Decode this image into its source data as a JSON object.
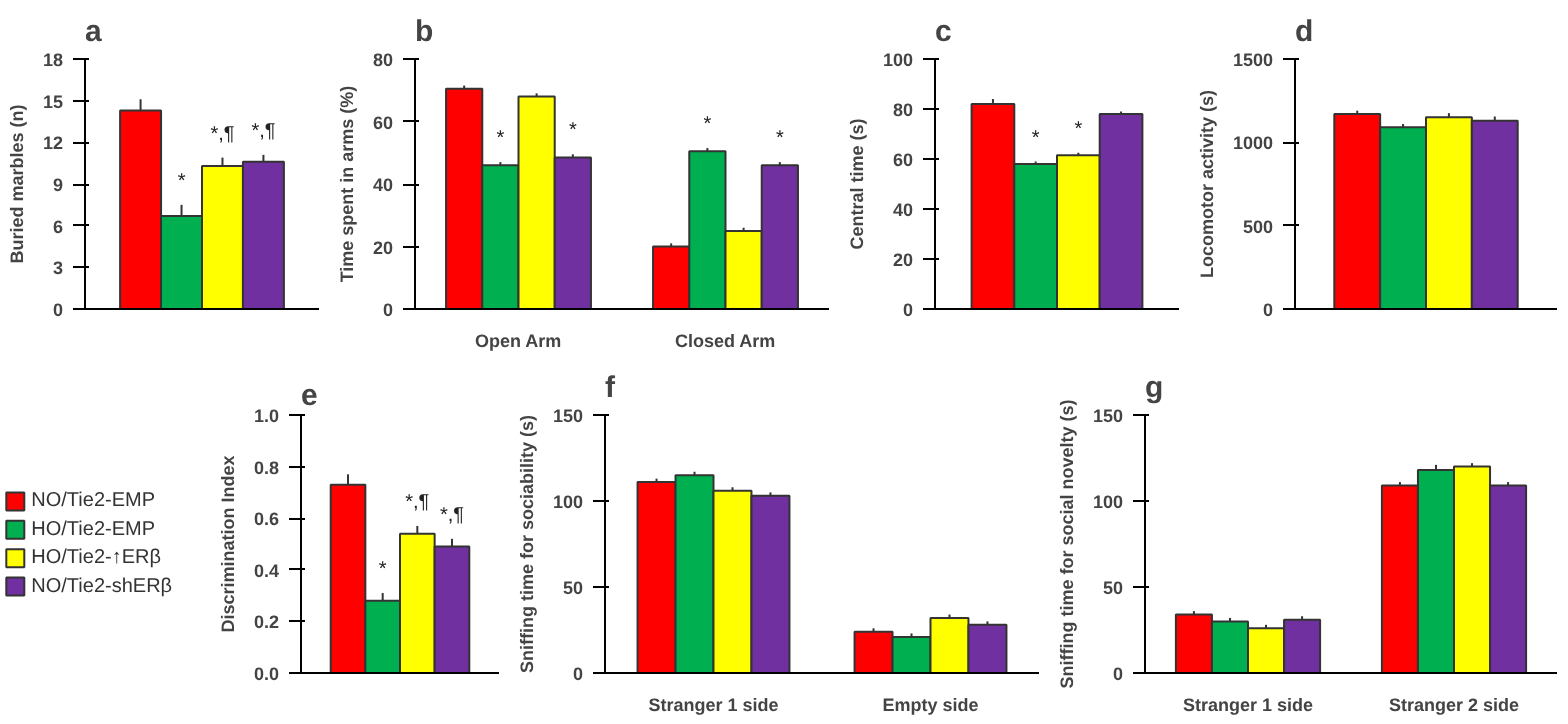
{
  "chart_data": [
    {
      "type": "bar",
      "title": "a",
      "ylabel": "Buried marbles (n)",
      "categories": [
        null
      ],
      "ylim": [
        0,
        18
      ],
      "yticks": [
        0,
        3,
        6,
        9,
        12,
        15,
        18
      ],
      "series": [
        {
          "color": "#ff0000",
          "values": [
            14.3
          ],
          "errors": [
            0.8
          ],
          "value_labels": [
            null
          ]
        },
        {
          "color": "#00b050",
          "values": [
            6.7
          ],
          "errors": [
            0.8
          ],
          "value_labels": [
            "*"
          ]
        },
        {
          "color": "#ffff00",
          "values": [
            10.3
          ],
          "errors": [
            0.6
          ],
          "value_labels": [
            "*,¶"
          ]
        },
        {
          "color": "#7030a0",
          "values": [
            10.6
          ],
          "errors": [
            0.5
          ],
          "value_labels": [
            "*,¶"
          ]
        }
      ]
    },
    {
      "type": "bar",
      "title": "b",
      "ylabel": "Time spent in arms (%)",
      "categories": [
        "Open Arm",
        "Closed Arm"
      ],
      "ylim": [
        0,
        80
      ],
      "yticks": [
        0,
        20,
        40,
        60,
        80
      ],
      "series": [
        {
          "color": "#ff0000",
          "values": [
            70.5,
            20
          ],
          "errors": [
            1,
            1
          ],
          "value_labels": [
            null,
            null
          ]
        },
        {
          "color": "#00b050",
          "values": [
            46,
            50.5
          ],
          "errors": [
            1,
            1
          ],
          "value_labels": [
            "*",
            "*"
          ]
        },
        {
          "color": "#ffff00",
          "values": [
            68,
            25
          ],
          "errors": [
            1,
            1
          ],
          "value_labels": [
            null,
            null
          ]
        },
        {
          "color": "#7030a0",
          "values": [
            48.5,
            46
          ],
          "errors": [
            1,
            1
          ],
          "value_labels": [
            "*",
            "*"
          ]
        }
      ]
    },
    {
      "type": "bar",
      "title": "c",
      "ylabel": "Central time (s)",
      "categories": [
        null
      ],
      "ylim": [
        0,
        100
      ],
      "yticks": [
        0,
        20,
        40,
        60,
        80,
        100
      ],
      "series": [
        {
          "color": "#ff0000",
          "values": [
            82
          ],
          "errors": [
            2
          ],
          "value_labels": [
            null
          ]
        },
        {
          "color": "#00b050",
          "values": [
            58
          ],
          "errors": [
            1
          ],
          "value_labels": [
            "*"
          ]
        },
        {
          "color": "#ffff00",
          "values": [
            61.5
          ],
          "errors": [
            1
          ],
          "value_labels": [
            "*"
          ]
        },
        {
          "color": "#7030a0",
          "values": [
            78
          ],
          "errors": [
            1
          ],
          "value_labels": [
            null
          ]
        }
      ]
    },
    {
      "type": "bar",
      "title": "d",
      "ylabel": "Locomotor activity (s)",
      "categories": [
        null
      ],
      "ylim": [
        0,
        1500
      ],
      "yticks": [
        0,
        500,
        1000,
        1500
      ],
      "series": [
        {
          "color": "#ff0000",
          "values": [
            1170
          ],
          "errors": [
            20
          ],
          "value_labels": [
            null
          ]
        },
        {
          "color": "#00b050",
          "values": [
            1090
          ],
          "errors": [
            20
          ],
          "value_labels": [
            null
          ]
        },
        {
          "color": "#ffff00",
          "values": [
            1150
          ],
          "errors": [
            25
          ],
          "value_labels": [
            null
          ]
        },
        {
          "color": "#7030a0",
          "values": [
            1130
          ],
          "errors": [
            25
          ],
          "value_labels": [
            null
          ]
        }
      ]
    },
    {
      "type": "bar",
      "title": "e",
      "ylabel": "Discrimination Index",
      "categories": [
        null
      ],
      "ylim": [
        0,
        1.0
      ],
      "yticks": [
        {
          "value": 0,
          "label": "0.0"
        },
        {
          "value": 0.2,
          "label": "0.2"
        },
        {
          "value": 0.4,
          "label": "0.4"
        },
        {
          "value": 0.6,
          "label": "0.6"
        },
        {
          "value": 0.8,
          "label": "0.8"
        },
        {
          "value": 1.0,
          "label": "1.0"
        }
      ],
      "legend": "left",
      "series": [
        {
          "name": "NO/Tie2-EMP",
          "color": "#ff0000",
          "values": [
            0.73
          ],
          "errors": [
            0.04
          ],
          "value_labels": [
            null
          ]
        },
        {
          "name": "HO/Tie2-EMP",
          "color": "#00b050",
          "values": [
            0.28
          ],
          "errors": [
            0.03
          ],
          "value_labels": [
            "*"
          ]
        },
        {
          "name": "HO/Tie2-↑ERβ",
          "color": "#ffff00",
          "values": [
            0.54
          ],
          "errors": [
            0.03
          ],
          "value_labels": [
            "*,¶"
          ]
        },
        {
          "name": "NO/Tie2-shERβ",
          "color": "#7030a0",
          "values": [
            0.49
          ],
          "errors": [
            0.03
          ],
          "value_labels": [
            "*,¶"
          ]
        }
      ]
    },
    {
      "type": "bar",
      "title": "f",
      "ylabel": "Sniffing time for sociability (s)",
      "categories": [
        "Stranger 1 side",
        "Empty side"
      ],
      "ylim": [
        0,
        150
      ],
      "yticks": [
        0,
        50,
        100,
        150
      ],
      "series": [
        {
          "color": "#ff0000",
          "values": [
            111,
            24
          ],
          "errors": [
            2,
            2
          ],
          "value_labels": [
            null,
            null
          ]
        },
        {
          "color": "#00b050",
          "values": [
            115,
            21
          ],
          "errors": [
            2,
            2
          ],
          "value_labels": [
            null,
            null
          ]
        },
        {
          "color": "#ffff00",
          "values": [
            106,
            32
          ],
          "errors": [
            2,
            2
          ],
          "value_labels": [
            null,
            null
          ]
        },
        {
          "color": "#7030a0",
          "values": [
            103,
            28
          ],
          "errors": [
            2,
            2
          ],
          "value_labels": [
            null,
            null
          ]
        }
      ]
    },
    {
      "type": "bar",
      "title": "g",
      "ylabel": "Sniffing time for social novelty (s)",
      "categories": [
        "Stranger 1 side",
        "Stranger 2 side"
      ],
      "ylim": [
        0,
        150
      ],
      "yticks": [
        0,
        50,
        100,
        150
      ],
      "series": [
        {
          "color": "#ff0000",
          "values": [
            34,
            109
          ],
          "errors": [
            2,
            2
          ],
          "value_labels": [
            null,
            null
          ]
        },
        {
          "color": "#00b050",
          "values": [
            30,
            118
          ],
          "errors": [
            2,
            3
          ],
          "value_labels": [
            null,
            null
          ]
        },
        {
          "color": "#ffff00",
          "values": [
            26,
            120
          ],
          "errors": [
            2,
            2
          ],
          "value_labels": [
            null,
            null
          ]
        },
        {
          "color": "#7030a0",
          "values": [
            31,
            109
          ],
          "errors": [
            2,
            2
          ],
          "value_labels": [
            null,
            null
          ]
        }
      ]
    }
  ]
}
